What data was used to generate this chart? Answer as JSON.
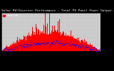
{
  "title": "Solar PV/Inverter Performance : Total PV Panel Power Output & Solar Radiation",
  "legend_label": "Total kW",
  "fig_bg": "#000000",
  "plot_bg": "#c8c8c8",
  "outer_bg": "#1a1a1a",
  "bar_color": "#ff0000",
  "dot_color": "#0000ff",
  "grid_color": "#ffffff",
  "grid_style": ":",
  "n_points": 365,
  "peak_value": 9.0,
  "ymax": 10.0,
  "right_yticks": [
    1,
    2,
    3,
    4,
    5,
    6,
    7,
    8,
    9,
    10
  ],
  "title_fontsize": 3.2,
  "tick_fontsize": 2.2,
  "legend_fontsize": 2.5
}
